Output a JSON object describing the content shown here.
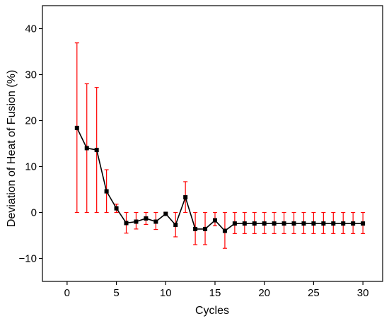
{
  "chart_data": {
    "type": "line",
    "title": "",
    "xlabel": "Cycles",
    "ylabel": "Deviation of Heat of Fusion (%)",
    "xlim": [
      -2.5,
      32
    ],
    "ylim": [
      -15,
      45
    ],
    "xticks": [
      0,
      5,
      10,
      15,
      20,
      25,
      30
    ],
    "yticks": [
      -10,
      0,
      10,
      20,
      30,
      40
    ],
    "tick_labels_x": [
      "0",
      "5",
      "10",
      "15",
      "20",
      "25",
      "30"
    ],
    "tick_labels_y": [
      "−10",
      "0",
      "10",
      "20",
      "30",
      "40"
    ],
    "grid": false,
    "legend": "none",
    "line_color": "#000000",
    "marker": "square",
    "errorbar_color": "#ff0000",
    "series": [
      {
        "x": [
          1,
          2,
          3,
          4,
          5,
          6,
          7,
          8,
          9,
          10,
          11,
          12,
          13,
          14,
          15,
          16,
          17,
          18,
          19,
          20,
          21,
          22,
          23,
          24,
          25,
          26,
          27,
          28,
          29,
          30
        ],
        "y": [
          18.4,
          14.0,
          13.6,
          4.6,
          0.9,
          -2.3,
          -2.0,
          -1.3,
          -2.0,
          -0.3,
          -2.7,
          3.3,
          -3.6,
          -3.6,
          -1.7,
          -4.0,
          -2.4,
          -2.4,
          -2.4,
          -2.4,
          -2.4,
          -2.4,
          -2.4,
          -2.4,
          -2.4,
          -2.4,
          -2.4,
          -2.4,
          -2.4,
          -2.4
        ],
        "err_low": [
          0.0,
          0.0,
          0.0,
          0.0,
          0.0,
          -4.5,
          -3.6,
          -2.6,
          -3.7,
          -0.6,
          -5.3,
          0.0,
          -7.0,
          -7.0,
          -2.9,
          -7.8,
          -4.6,
          -4.6,
          -4.6,
          -4.6,
          -4.6,
          -4.6,
          -4.6,
          -4.6,
          -4.6,
          -4.6,
          -4.6,
          -4.6,
          -4.6,
          -4.6
        ],
        "err_high": [
          36.9,
          28.0,
          27.2,
          9.3,
          1.8,
          0.0,
          0.0,
          0.0,
          0.0,
          0.0,
          0.0,
          6.7,
          0.0,
          0.0,
          0.0,
          0.0,
          0.0,
          0.0,
          0.0,
          0.0,
          0.0,
          0.0,
          0.0,
          0.0,
          0.0,
          0.0,
          0.0,
          0.0,
          0.0,
          0.0
        ]
      }
    ]
  }
}
